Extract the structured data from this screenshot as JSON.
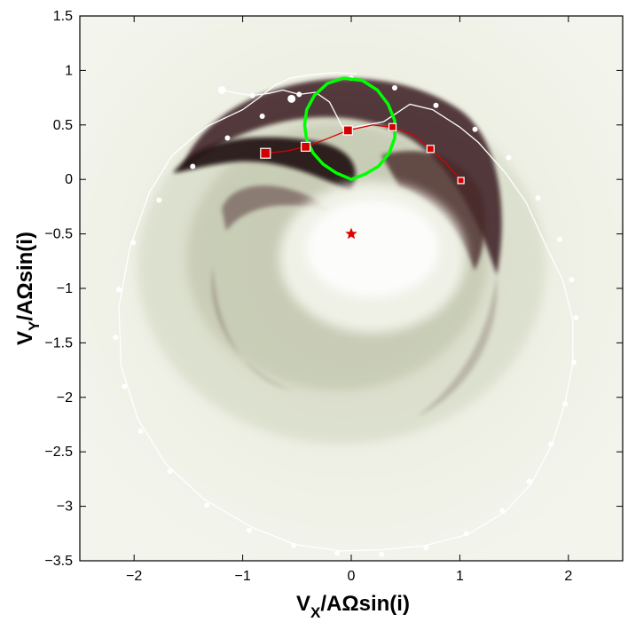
{
  "chart_data": {
    "type": "scatter",
    "title": "",
    "xlabel": {
      "main": "V",
      "sub": "X",
      "rest": "/AΩsin(i)"
    },
    "ylabel": {
      "main": "V",
      "sub": "Y",
      "rest": "/AΩsin(i)"
    },
    "xlim": [
      -2.5,
      2.5
    ],
    "ylim": [
      -3.5,
      1.5
    ],
    "xticks": [
      -2,
      -1,
      0,
      1,
      2
    ],
    "yticks": [
      1.5,
      1,
      0.5,
      0,
      -0.5,
      -1,
      -1.5,
      -2,
      -2.5,
      -3,
      -3.5
    ],
    "grid": false,
    "background": "doppler-tomogram",
    "colors": {
      "background_low": "#eef0e4",
      "emission_high": "#2a1418",
      "secondary_lobe": "#00ff00",
      "stream_ballistic": "#d40000",
      "disc_path": "#ffffff",
      "white_dwarf": "#e00000"
    },
    "series": [
      {
        "points": [
          [
            -1.19,
            0.82
          ],
          [
            -1.04,
            0.79
          ],
          [
            -0.91,
            0.77
          ],
          [
            -0.76,
            0.79
          ],
          [
            -0.63,
            0.82
          ],
          [
            -0.48,
            0.78
          ],
          [
            -0.33,
            0.8
          ],
          [
            -0.2,
            0.71
          ],
          [
            -0.07,
            0.46
          ],
          [
            0.3,
            0.53
          ],
          [
            0.54,
            0.69
          ],
          [
            0.75,
            0.64
          ],
          [
            1.0,
            0.48
          ],
          [
            1.17,
            0.34
          ],
          [
            1.42,
            0.06
          ],
          [
            1.61,
            -0.21
          ],
          [
            1.78,
            -0.58
          ],
          [
            1.95,
            -0.93
          ],
          [
            2.04,
            -1.29
          ],
          [
            2.04,
            -1.69
          ],
          [
            1.97,
            -2.05
          ],
          [
            1.85,
            -2.43
          ],
          [
            1.66,
            -2.79
          ],
          [
            1.42,
            -3.05
          ],
          [
            1.07,
            -3.26
          ],
          [
            0.68,
            -3.36
          ],
          [
            0.28,
            -3.4
          ],
          [
            -0.1,
            -3.41
          ],
          [
            -0.52,
            -3.35
          ],
          [
            -0.92,
            -3.19
          ],
          [
            -1.35,
            -2.94
          ],
          [
            -1.71,
            -2.61
          ],
          [
            -1.97,
            -2.19
          ],
          [
            -2.12,
            -1.71
          ],
          [
            -2.14,
            -1.17
          ],
          [
            -2.04,
            -0.63
          ],
          [
            -1.86,
            -0.12
          ],
          [
            -1.65,
            0.22
          ],
          [
            -1.43,
            0.41
          ],
          [
            -1.32,
            0.49
          ],
          [
            -1.17,
            0.56
          ],
          [
            -1.0,
            0.64
          ],
          [
            -0.85,
            0.75
          ],
          [
            -0.71,
            0.86
          ],
          [
            -0.56,
            0.93
          ],
          [
            -0.37,
            0.96
          ],
          [
            -0.16,
            0.98
          ],
          [
            0.05,
            0.97
          ]
        ],
        "markers": [
          [
            -1.19,
            0.82
          ],
          [
            -0.91,
            0.77
          ],
          [
            -0.48,
            0.78
          ],
          [
            0.0,
            0.93
          ],
          [
            0.4,
            0.84
          ],
          [
            0.78,
            0.68
          ],
          [
            1.14,
            0.46
          ],
          [
            1.45,
            0.2
          ],
          [
            1.72,
            -0.17
          ],
          [
            1.92,
            -0.55
          ],
          [
            2.03,
            -0.92
          ],
          [
            2.07,
            -1.27
          ],
          [
            2.05,
            -1.68
          ],
          [
            1.97,
            -2.06
          ],
          [
            1.84,
            -2.43
          ],
          [
            1.64,
            -2.77
          ],
          [
            1.39,
            -3.04
          ],
          [
            1.06,
            -3.25
          ],
          [
            0.69,
            -3.38
          ],
          [
            0.28,
            -3.44
          ],
          [
            -0.13,
            -3.43
          ],
          [
            -0.53,
            -3.36
          ],
          [
            -0.94,
            -3.22
          ],
          [
            -1.33,
            -2.99
          ],
          [
            -1.67,
            -2.68
          ],
          [
            -1.94,
            -2.31
          ],
          [
            -2.09,
            -1.9
          ],
          [
            -2.17,
            -1.45
          ],
          [
            -2.14,
            -1.01
          ],
          [
            -2.01,
            -0.58
          ],
          [
            -1.77,
            -0.19
          ],
          [
            -1.46,
            0.12
          ],
          [
            -1.14,
            0.38
          ],
          [
            -0.82,
            0.58
          ],
          [
            -0.55,
            0.74
          ]
        ]
      },
      {
        "points": [
          [
            -0.79,
            0.24
          ],
          [
            -0.6,
            0.26
          ],
          [
            -0.42,
            0.3
          ],
          [
            -0.23,
            0.37
          ],
          [
            -0.03,
            0.45
          ],
          [
            0.2,
            0.5
          ],
          [
            0.38,
            0.48
          ],
          [
            0.57,
            0.41
          ],
          [
            0.73,
            0.28
          ],
          [
            0.88,
            0.14
          ],
          [
            1.01,
            -0.01
          ]
        ],
        "markers": [
          [
            -0.79,
            0.24
          ],
          [
            -0.42,
            0.3
          ],
          [
            -0.03,
            0.45
          ],
          [
            0.38,
            0.48
          ],
          [
            0.73,
            0.28
          ],
          [
            1.01,
            -0.01
          ]
        ]
      },
      {
        "points": [
          [
            0.0,
            0.0
          ],
          [
            -0.14,
            0.06
          ],
          [
            -0.26,
            0.14
          ],
          [
            -0.35,
            0.24
          ],
          [
            -0.41,
            0.36
          ],
          [
            -0.43,
            0.5
          ],
          [
            -0.41,
            0.64
          ],
          [
            -0.34,
            0.77
          ],
          [
            -0.22,
            0.88
          ],
          [
            -0.07,
            0.93
          ],
          [
            0.1,
            0.91
          ],
          [
            0.24,
            0.82
          ],
          [
            0.34,
            0.69
          ],
          [
            0.4,
            0.54
          ],
          [
            0.4,
            0.38
          ],
          [
            0.35,
            0.24
          ],
          [
            0.25,
            0.12
          ],
          [
            0.13,
            0.05
          ],
          [
            0.0,
            0.0
          ]
        ]
      },
      {
        "points": [
          [
            0.0,
            -0.5
          ]
        ],
        "marker": "star"
      }
    ]
  }
}
